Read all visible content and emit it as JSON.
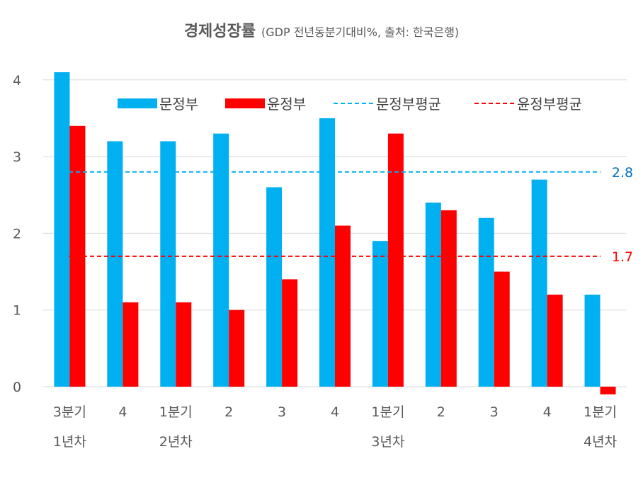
{
  "chart_data": {
    "type": "bar",
    "title": "경제성장률",
    "subtitle": "(GDP 전년동분기대비%, 출처: 한국은행)",
    "categories": [
      {
        "quarter": "3분기",
        "year": "1년차"
      },
      {
        "quarter": "4",
        "year": ""
      },
      {
        "quarter": "1분기",
        "year": "2년차"
      },
      {
        "quarter": "2",
        "year": ""
      },
      {
        "quarter": "3",
        "year": ""
      },
      {
        "quarter": "4",
        "year": ""
      },
      {
        "quarter": "1분기",
        "year": "3년차"
      },
      {
        "quarter": "2",
        "year": ""
      },
      {
        "quarter": "3",
        "year": ""
      },
      {
        "quarter": "4",
        "year": ""
      },
      {
        "quarter": "1분기",
        "year": "4년차"
      }
    ],
    "series": [
      {
        "name": "문정부",
        "color": "#00B0F0",
        "values": [
          4.1,
          3.2,
          3.2,
          3.3,
          2.6,
          3.5,
          1.9,
          2.4,
          2.2,
          2.7,
          1.2
        ]
      },
      {
        "name": "윤정부",
        "color": "#FF0000",
        "values": [
          3.4,
          1.1,
          1.1,
          1.0,
          1.4,
          2.1,
          3.3,
          2.3,
          1.5,
          1.2,
          -0.1
        ]
      }
    ],
    "averages": [
      {
        "name": "문정부평균",
        "value": 2.8,
        "label": "2.8",
        "color": "#00B0F0",
        "label_color": "#0070C0"
      },
      {
        "name": "윤정부평균",
        "value": 1.7,
        "label": "1.7",
        "color": "#FF0000",
        "label_color": "#FF0000"
      }
    ],
    "yticks": [
      "0",
      "1",
      "2",
      "3",
      "4"
    ],
    "ylim": [
      -0.1,
      4.1
    ],
    "grid": true,
    "legend_position": "top"
  }
}
